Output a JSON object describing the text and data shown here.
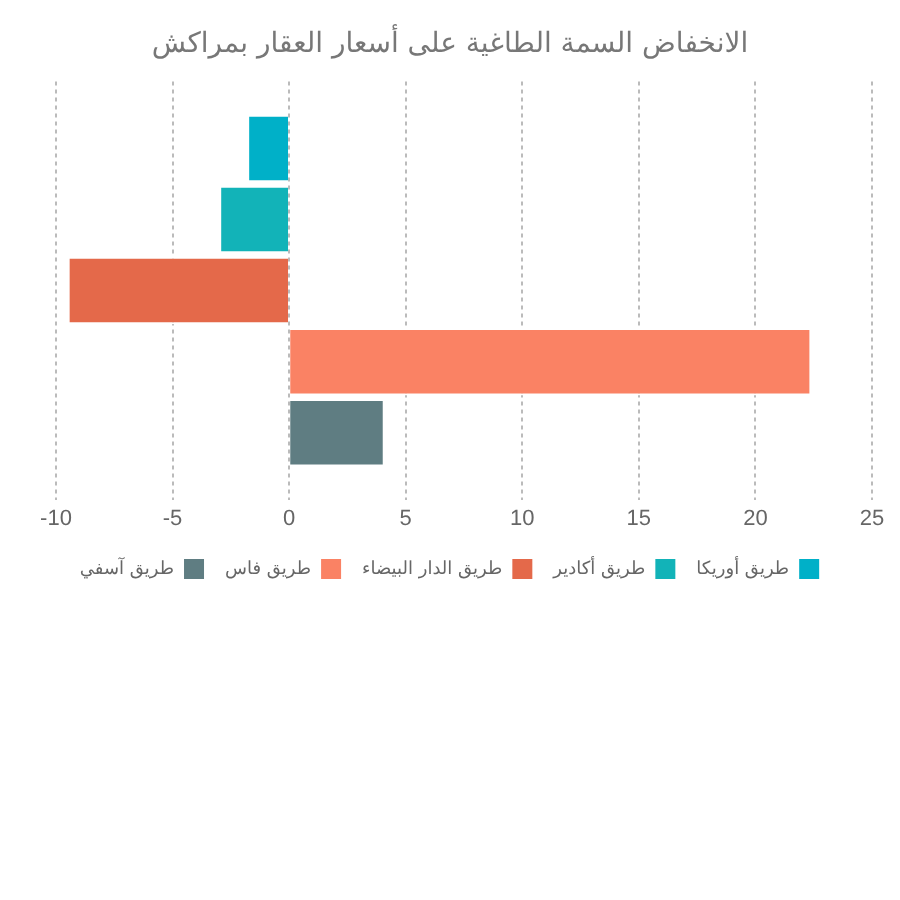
{
  "chart_data": {
    "type": "bar",
    "orientation": "horizontal",
    "title": "الانخفاض السمة الطاغية على أسعار العقار بمراكش",
    "categories": [
      null
    ],
    "series": [
      {
        "name": "طريق أوريكا",
        "color": "#00b0c8",
        "values": [
          -1.8
        ]
      },
      {
        "name": "طريق أكادير",
        "color": "#12b3b8",
        "values": [
          -3
        ]
      },
      {
        "name": "طريق الدار البيضاء",
        "color": "#e4694a",
        "values": [
          -9.5
        ]
      },
      {
        "name": "طريق فاس",
        "color": "#fa8264",
        "values": [
          22.4
        ]
      },
      {
        "name": "طريق آسفي",
        "color": "#5f7d82",
        "values": [
          4.1
        ]
      }
    ],
    "xlim": [
      -10,
      25
    ],
    "xticks": [
      -10,
      -5,
      0,
      5,
      10,
      15,
      20,
      25
    ],
    "grid": "x",
    "legend": "bottom"
  }
}
